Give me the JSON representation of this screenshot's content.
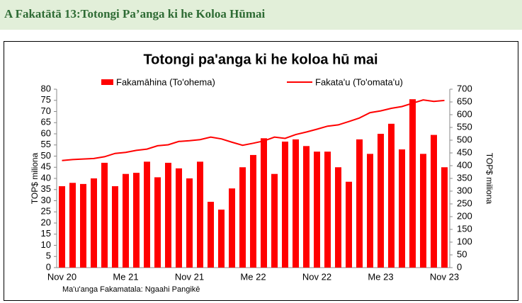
{
  "header": {
    "title": "A Fakatātā  13:Totongi Pa’anga ki he Koloa Hūmai"
  },
  "chart_data": {
    "type": "bar-line",
    "title": "Totongi pa'anga ki he koloa hū mai",
    "y_label": "TOP$ miliona",
    "y2_label": "TOP$ miliona",
    "source": "Ma'u'anga Fakamatala: Ngaahi Pangikē",
    "categories": [
      "Nov 20",
      null,
      null,
      null,
      null,
      null,
      "Me 21",
      null,
      null,
      null,
      null,
      null,
      "Nov 21",
      null,
      null,
      null,
      null,
      null,
      "Me 22",
      null,
      null,
      null,
      null,
      null,
      "Nov 22",
      null,
      null,
      null,
      null,
      null,
      "Me 23",
      null,
      null,
      null,
      null,
      null,
      "Nov 23"
    ],
    "series": [
      {
        "name": "Fakamāhina (To'ohema)",
        "type": "bar",
        "color": "#ff0000",
        "values": [
          36.5,
          38,
          37.5,
          40,
          47,
          36.5,
          42,
          42.5,
          47.5,
          40.5,
          47,
          44.5,
          40,
          47.5,
          29.5,
          26,
          35.5,
          45,
          50.5,
          58,
          42,
          56.5,
          57.5,
          54.5,
          52,
          52,
          45,
          38.5,
          57.5,
          51,
          60,
          64.5,
          53,
          75.5,
          51,
          59.5,
          45
        ]
      },
      {
        "name": "Fakata'u (To'omata'u)",
        "type": "line",
        "color": "#ff0000",
        "axis": "y2",
        "values": [
          420,
          424,
          426,
          428,
          435,
          448,
          452,
          460,
          465,
          478,
          482,
          495,
          498,
          502,
          512,
          505,
          492,
          480,
          488,
          497,
          512,
          507,
          522,
          532,
          543,
          555,
          560,
          573,
          587,
          608,
          615,
          625,
          632,
          645,
          658,
          652,
          656
        ]
      }
    ],
    "ylim": [
      0,
      80
    ],
    "yticks": [
      0,
      5,
      10,
      15,
      20,
      25,
      30,
      35,
      40,
      45,
      50,
      55,
      60,
      65,
      70,
      75,
      80
    ],
    "y2lim": [
      0,
      700
    ],
    "y2ticks": [
      0,
      50,
      100,
      150,
      200,
      250,
      300,
      350,
      400,
      450,
      500,
      550,
      600,
      650,
      700
    ],
    "grid": false,
    "legend": "top"
  }
}
